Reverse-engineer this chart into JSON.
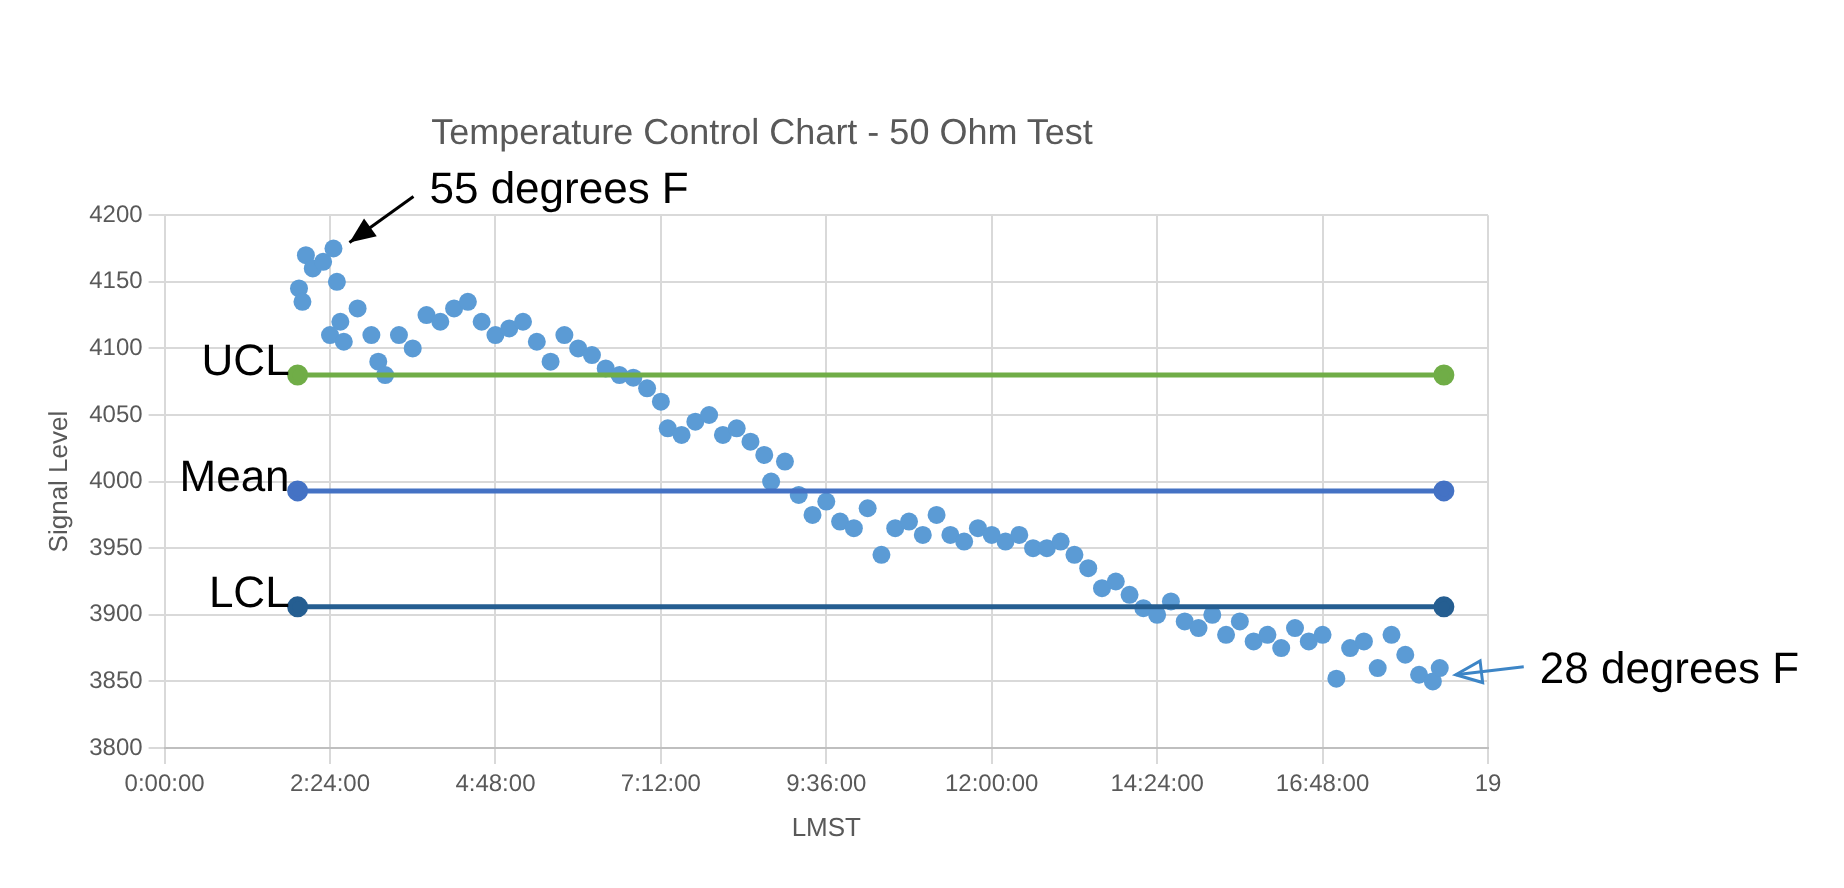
{
  "chart_data": {
    "type": "scatter",
    "title": "Temperature Control Chart - 50 Ohm Test",
    "xlabel": "LMST",
    "ylabel": "Signal Level",
    "xlim": [
      0,
      19.2
    ],
    "xticks": [
      {
        "value": 0,
        "label": "0:00:00"
      },
      {
        "value": 2.4,
        "label": "2:24:00"
      },
      {
        "value": 4.8,
        "label": "4:48:00"
      },
      {
        "value": 7.2,
        "label": "7:12:00"
      },
      {
        "value": 9.6,
        "label": "9:36:00"
      },
      {
        "value": 12,
        "label": "12:00:00"
      },
      {
        "value": 14.4,
        "label": "14:24:00"
      },
      {
        "value": 16.8,
        "label": "16:48:00"
      },
      {
        "value": 19.2,
        "label": "19"
      }
    ],
    "ylim": [
      3800,
      4200
    ],
    "yticks": [
      3800,
      3850,
      3900,
      3950,
      4000,
      4050,
      4100,
      4150,
      4200
    ],
    "grid": true,
    "legend": false,
    "marker": "circle",
    "series": [
      {
        "color": "#5b9bd5",
        "x": [
          1.95,
          2.0,
          2.05,
          2.15,
          2.3,
          2.45,
          2.5,
          2.55,
          2.4,
          2.6,
          2.8,
          3.0,
          3.1,
          3.2,
          3.4,
          3.6,
          3.8,
          4.0,
          4.2,
          4.4,
          4.6,
          4.8,
          5.0,
          5.2,
          5.4,
          5.6,
          5.8,
          6.0,
          6.2,
          6.4,
          6.6,
          6.8,
          7.0,
          7.2,
          7.3,
          7.5,
          7.7,
          7.9,
          8.1,
          8.3,
          8.5,
          8.7,
          8.8,
          9.0,
          9.2,
          9.4,
          9.6,
          9.8,
          10.0,
          10.2,
          10.4,
          10.6,
          10.8,
          11.0,
          11.2,
          11.4,
          11.6,
          11.8,
          12.0,
          12.2,
          12.4,
          12.6,
          12.8,
          13.0,
          13.2,
          13.4,
          13.6,
          13.8,
          14.0,
          14.2,
          14.4,
          14.6,
          14.8,
          15.0,
          15.2,
          15.4,
          15.6,
          15.8,
          16.0,
          16.2,
          16.4,
          16.6,
          16.8,
          17.0,
          17.2,
          17.4,
          17.6,
          17.8,
          18.0,
          18.2,
          18.4,
          18.5
        ],
        "values": [
          4145,
          4135,
          4170,
          4160,
          4165,
          4175,
          4150,
          4120,
          4110,
          4105,
          4130,
          4110,
          4090,
          4080,
          4110,
          4100,
          4125,
          4120,
          4130,
          4135,
          4120,
          4110,
          4115,
          4120,
          4105,
          4090,
          4110,
          4100,
          4095,
          4085,
          4080,
          4078,
          4070,
          4060,
          4040,
          4035,
          4045,
          4050,
          4035,
          4040,
          4030,
          4020,
          4000,
          4015,
          3990,
          3975,
          3985,
          3970,
          3965,
          3980,
          3945,
          3965,
          3970,
          3960,
          3975,
          3960,
          3955,
          3965,
          3960,
          3955,
          3960,
          3950,
          3950,
          3955,
          3945,
          3935,
          3920,
          3925,
          3915,
          3905,
          3900,
          3910,
          3895,
          3890,
          3900,
          3885,
          3895,
          3880,
          3885,
          3875,
          3890,
          3880,
          3885,
          3852,
          3875,
          3880,
          3860,
          3885,
          3870,
          3855,
          3850,
          3860
        ]
      },
      {
        "type": "line",
        "name": "UCL",
        "color": "#70ad47",
        "x": [
          1.93,
          18.56
        ],
        "values": [
          4080,
          4080
        ]
      },
      {
        "type": "line",
        "name": "Mean",
        "color": "#4472c4",
        "x": [
          1.93,
          18.56
        ],
        "values": [
          3993,
          3993
        ]
      },
      {
        "type": "line",
        "name": "LCL",
        "color": "#255e91",
        "x": [
          1.93,
          18.56
        ],
        "values": [
          3906,
          3906
        ]
      }
    ],
    "annotations": [
      {
        "text": "55 degrees F",
        "x": 2.45,
        "y": 4175
      },
      {
        "text": "28 degrees F",
        "x": 18.5,
        "y": 3855
      }
    ]
  }
}
